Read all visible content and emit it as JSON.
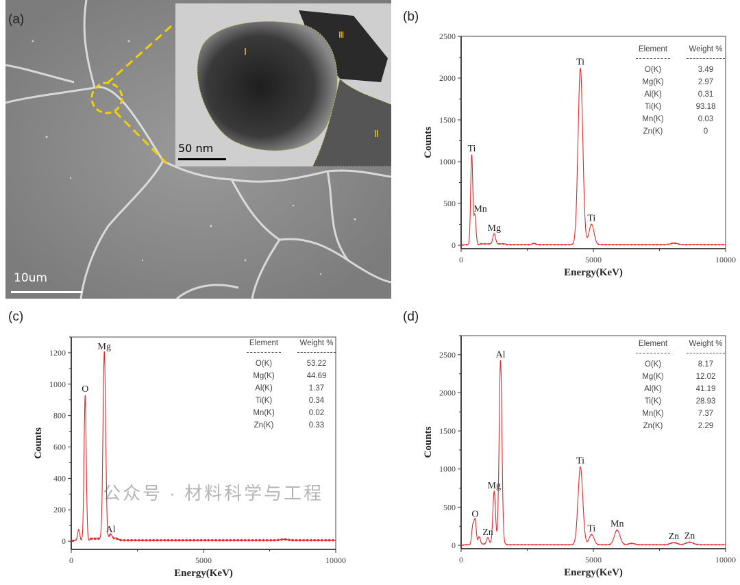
{
  "panels": {
    "a": "(a)",
    "b": "(b)",
    "c": "(c)",
    "d": "(d)"
  },
  "sem": {
    "scale_bar": "10um",
    "inset_scale_bar": "50 nm",
    "regions": [
      "Ⅰ",
      "Ⅱ",
      "Ⅲ"
    ]
  },
  "watermark": "公众号 · 材料科学与工程",
  "colors": {
    "spectrum": "#e8262b",
    "highlight": "#f5d000"
  },
  "chart_data": [
    {
      "id": "b",
      "type": "line",
      "title": "",
      "xlabel": "Energy(KeV)",
      "ylabel": "Counts",
      "xlim": [
        0,
        10000
      ],
      "ylim": [
        -41,
        2500
      ],
      "xticks": [
        "0",
        "5000",
        "10000"
      ],
      "yticks": [
        "0",
        "500",
        "1000",
        "1500",
        "2000",
        "2500"
      ],
      "peaks": [
        {
          "x": 400,
          "counts": 1080,
          "label": "Ti"
        },
        {
          "x": 520,
          "counts": 360,
          "label": "Mn"
        },
        {
          "x": 1250,
          "counts": 130,
          "label": "Mg"
        },
        {
          "x": 2750,
          "counts": 22,
          "label": ""
        },
        {
          "x": 4510,
          "counts": 2120,
          "label": "Ti"
        },
        {
          "x": 4930,
          "counts": 250,
          "label": "Ti"
        },
        {
          "x": 8050,
          "counts": 25,
          "label": ""
        },
        {
          "x": 8900,
          "counts": 8,
          "label": ""
        }
      ],
      "table": {
        "headers": [
          "Element",
          "Weight %"
        ],
        "rows": [
          [
            "O(K)",
            "3.49"
          ],
          [
            "Mg(K)",
            "2.97"
          ],
          [
            "Al(K)",
            "0.31"
          ],
          [
            "Ti(K)",
            "93.18"
          ],
          [
            "Mn(K)",
            "0.03"
          ],
          [
            "Zn(K)",
            "0"
          ]
        ]
      }
    },
    {
      "id": "c",
      "type": "line",
      "title": "",
      "xlabel": "Energy(KeV)",
      "ylabel": "Counts",
      "xlim": [
        0,
        10000
      ],
      "ylim": [
        -52,
        1300
      ],
      "xticks": [
        "0",
        "5000",
        "10000"
      ],
      "yticks": [
        "0",
        "200",
        "400",
        "600",
        "800",
        "1000",
        "1200"
      ],
      "peaks": [
        {
          "x": 280,
          "counts": 75,
          "label": ""
        },
        {
          "x": 525,
          "counts": 930,
          "label": "O"
        },
        {
          "x": 1250,
          "counts": 1200,
          "label": "Mg"
        },
        {
          "x": 1490,
          "counts": 35,
          "label": "Al"
        },
        {
          "x": 1740,
          "counts": 15,
          "label": ""
        },
        {
          "x": 8050,
          "counts": 12,
          "label": ""
        }
      ],
      "table": {
        "headers": [
          "Element",
          "Weight %"
        ],
        "rows": [
          [
            "O(K)",
            "53.22"
          ],
          [
            "Mg(K)",
            "44.69"
          ],
          [
            "Al(K)",
            "1.37"
          ],
          [
            "Ti(K)",
            "0.34"
          ],
          [
            "Mn(K)",
            "0.02"
          ],
          [
            "Zn(K)",
            "0.33"
          ]
        ]
      }
    },
    {
      "id": "d",
      "type": "line",
      "title": "",
      "xlabel": "Energy(KeV)",
      "ylabel": "Counts",
      "xlim": [
        0,
        10000
      ],
      "ylim": [
        -45,
        2750
      ],
      "xticks": [
        "0",
        "5000",
        "10000"
      ],
      "yticks": [
        "0",
        "500",
        "1000",
        "1500",
        "2000",
        "2500"
      ],
      "peaks": [
        {
          "x": 440,
          "counts": 250,
          "label": ""
        },
        {
          "x": 530,
          "counts": 330,
          "label": "O"
        },
        {
          "x": 680,
          "counts": 110,
          "label": ""
        },
        {
          "x": 1010,
          "counts": 90,
          "label": "Zn"
        },
        {
          "x": 1250,
          "counts": 700,
          "label": "Mg"
        },
        {
          "x": 1490,
          "counts": 2420,
          "label": "Al"
        },
        {
          "x": 4510,
          "counts": 1030,
          "label": "Ti"
        },
        {
          "x": 4930,
          "counts": 140,
          "label": "Ti"
        },
        {
          "x": 5900,
          "counts": 200,
          "label": "Mn"
        },
        {
          "x": 6450,
          "counts": 25,
          "label": ""
        },
        {
          "x": 8040,
          "counts": 35,
          "label": "Zn"
        },
        {
          "x": 8640,
          "counts": 40,
          "label": "Zn"
        }
      ],
      "table": {
        "headers": [
          "Element",
          "Weight %"
        ],
        "rows": [
          [
            "O(K)",
            "8.17"
          ],
          [
            "Mg(K)",
            "12.02"
          ],
          [
            "Al(K)",
            "41.19"
          ],
          [
            "Ti(K)",
            "28.93"
          ],
          [
            "Mn(K)",
            "7.37"
          ],
          [
            "Zn(K)",
            "2.29"
          ]
        ]
      }
    }
  ]
}
